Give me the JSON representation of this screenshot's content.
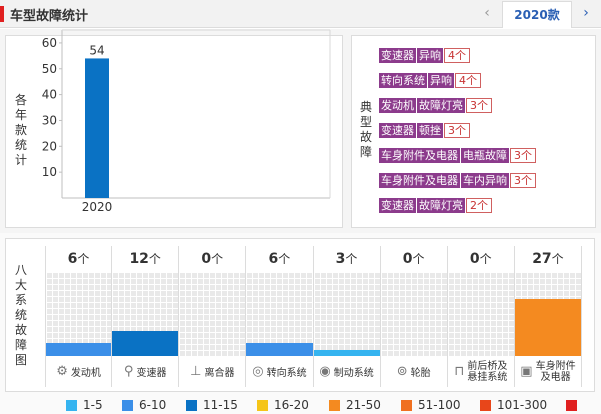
{
  "header": {
    "title": "车型故障统计",
    "prev_icon": "‹",
    "tab_label": "2020款",
    "next_icon": "›"
  },
  "yearly": {
    "axis_label_chars": [
      "各",
      "年",
      "款",
      "统",
      "计"
    ],
    "chart_data": {
      "type": "bar",
      "categories": [
        "2020"
      ],
      "values": [
        54
      ],
      "ylim": [
        0,
        65
      ],
      "yticks": [
        10,
        20,
        30,
        40,
        50,
        60
      ],
      "grid": false,
      "color": "#0a72c4"
    }
  },
  "typical": {
    "label_chars": [
      "典",
      "型",
      "故",
      "障"
    ],
    "rows": [
      {
        "chips": [
          "变速器",
          "异响"
        ],
        "count": "4个"
      },
      {
        "chips": [
          "转向系统",
          "异响"
        ],
        "count": "4个"
      },
      {
        "chips": [
          "发动机",
          "故障灯亮"
        ],
        "count": "3个"
      },
      {
        "chips": [
          "变速器",
          "顿挫"
        ],
        "count": "3个"
      },
      {
        "chips": [
          "车身附件及电器",
          "电瓶故障"
        ],
        "count": "3个"
      },
      {
        "chips": [
          "车身附件及电器",
          "车内异响"
        ],
        "count": "3个"
      },
      {
        "chips": [
          "变速器",
          "故障灯亮"
        ],
        "count": "2个"
      }
    ]
  },
  "systems": {
    "label_chars": [
      "八",
      "大",
      "系",
      "统",
      "故",
      "障",
      "图"
    ],
    "unit": "个",
    "max": 40,
    "items": [
      {
        "name": "发动机",
        "count": 6,
        "color": "#3b8fe8",
        "icon": "engine-icon",
        "glyph": "⚙"
      },
      {
        "name": "变速器",
        "count": 12,
        "color": "#0a72c4",
        "icon": "gear-shift-icon",
        "glyph": "⚲"
      },
      {
        "name": "离合器",
        "count": 0,
        "color": "#3b8fe8",
        "icon": "clutch-icon",
        "glyph": "⊥"
      },
      {
        "name": "转向系统",
        "count": 6,
        "color": "#3b8fe8",
        "icon": "steering-wheel-icon",
        "glyph": "◎"
      },
      {
        "name": "制动系统",
        "count": 3,
        "color": "#35b4f0",
        "icon": "brake-icon",
        "glyph": "◉"
      },
      {
        "name": "轮胎",
        "count": 0,
        "color": "#3b8fe8",
        "icon": "tire-icon",
        "glyph": "⊚"
      },
      {
        "name": "前后桥及悬挂系统",
        "name_lines": [
          "前后桥及",
          "悬挂系统"
        ],
        "count": 0,
        "color": "#3b8fe8",
        "icon": "suspension-icon",
        "glyph": "⊓"
      },
      {
        "name": "车身附件及电器",
        "name_lines": [
          "车身附件",
          "及电器"
        ],
        "count": 27,
        "color": "#f48a20",
        "icon": "car-body-icon",
        "glyph": "▣"
      }
    ]
  },
  "legend": [
    {
      "label": "1-5",
      "color": "#35b4f0"
    },
    {
      "label": "6-10",
      "color": "#3b8fe8"
    },
    {
      "label": "11-15",
      "color": "#0a72c4"
    },
    {
      "label": "16-20",
      "color": "#f5c518"
    },
    {
      "label": "21-50",
      "color": "#f48a20"
    },
    {
      "label": "51-100",
      "color": "#f07020"
    },
    {
      "label": "101-300",
      "color": "#e8461a"
    },
    {
      "label": "",
      "color": "#e02020"
    }
  ]
}
